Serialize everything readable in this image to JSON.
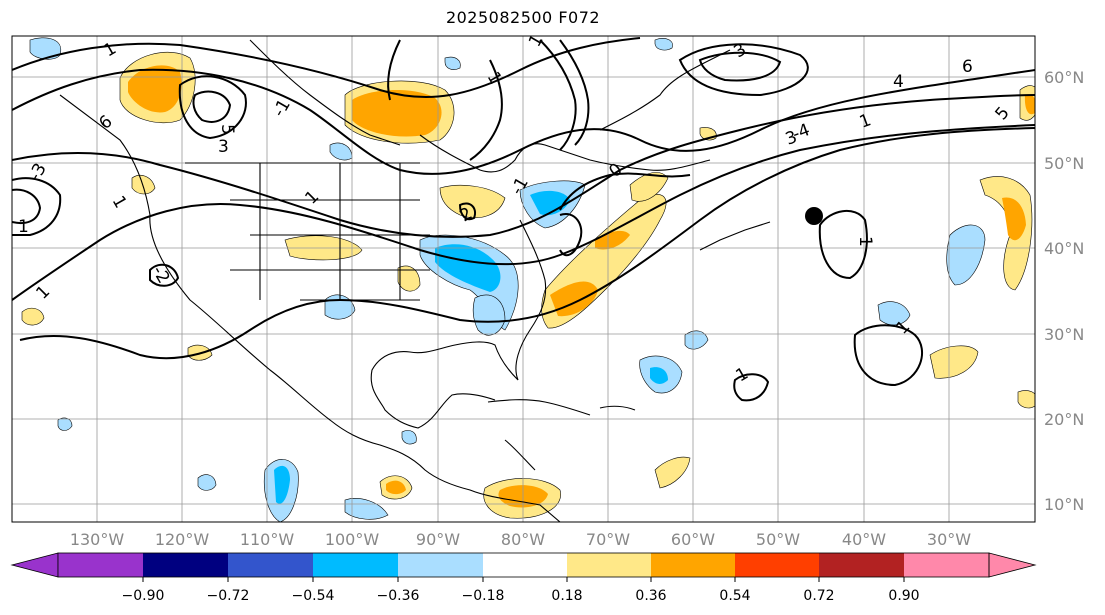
{
  "title": "2025082500 F072",
  "map": {
    "lon_labels": [
      "130°W",
      "120°W",
      "110°W",
      "100°W",
      "90°W",
      "80°W",
      "70°W",
      "60°W",
      "50°W",
      "40°W",
      "30°W"
    ],
    "lat_labels": [
      "60°N",
      "50°N",
      "40°N",
      "30°N",
      "20°N",
      "10°N"
    ],
    "contour_labels": [
      "1",
      "5",
      "3",
      "-1",
      "1",
      "1",
      "3",
      "4",
      "6",
      "5",
      "-4",
      "3",
      "6",
      "1",
      "-3",
      "1",
      "1",
      "2",
      "-2",
      "0",
      "1",
      "1",
      "1",
      "1",
      "1",
      "-1"
    ]
  },
  "colorbar": {
    "tick_labels": [
      "−0.90",
      "−0.72",
      "−0.54",
      "−0.36",
      "−0.18",
      "0.18",
      "0.36",
      "0.54",
      "0.72",
      "0.90"
    ],
    "colors": [
      "#9933cc",
      "#000080",
      "#3355cc",
      "#00bbff",
      "#aadeff",
      "#ffffff",
      "#ffe888",
      "#ffa500",
      "#ff3f00",
      "#b22222",
      "#ff88aa"
    ]
  }
}
